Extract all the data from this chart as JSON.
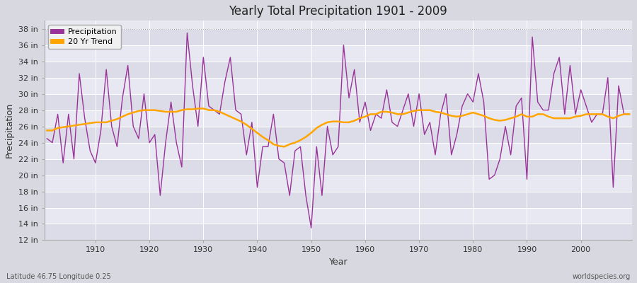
{
  "title": "Yearly Total Precipitation 1901 - 2009",
  "xlabel": "Year",
  "ylabel": "Precipitation",
  "lat_lon_label": "Latitude 46.75 Longitude 0.25",
  "source_label": "worldspecies.org",
  "precipitation_color": "#993399",
  "trend_color": "#FFA500",
  "background_color": "#D8D8E0",
  "plot_background": "#E8E8F0",
  "grid_color": "#FFFFFF",
  "ylim": [
    12,
    39
  ],
  "ytick_labels": [
    "12 in",
    "14 in",
    "16 in",
    "18 in",
    "20 in",
    "22 in",
    "24 in",
    "26 in",
    "28 in",
    "30 in",
    "32 in",
    "34 in",
    "36 in",
    "38 in"
  ],
  "ytick_values": [
    12,
    14,
    16,
    18,
    20,
    22,
    24,
    26,
    28,
    30,
    32,
    34,
    36,
    38
  ],
  "years": [
    1901,
    1902,
    1903,
    1904,
    1905,
    1906,
    1907,
    1908,
    1909,
    1910,
    1911,
    1912,
    1913,
    1914,
    1915,
    1916,
    1917,
    1918,
    1919,
    1920,
    1921,
    1922,
    1923,
    1924,
    1925,
    1926,
    1927,
    1928,
    1929,
    1930,
    1931,
    1932,
    1933,
    1934,
    1935,
    1936,
    1937,
    1938,
    1939,
    1940,
    1941,
    1942,
    1943,
    1944,
    1945,
    1946,
    1947,
    1948,
    1949,
    1950,
    1951,
    1952,
    1953,
    1954,
    1955,
    1956,
    1957,
    1958,
    1959,
    1960,
    1961,
    1962,
    1963,
    1964,
    1965,
    1966,
    1967,
    1968,
    1969,
    1970,
    1971,
    1972,
    1973,
    1974,
    1975,
    1976,
    1977,
    1978,
    1979,
    1980,
    1981,
    1982,
    1983,
    1984,
    1985,
    1986,
    1987,
    1988,
    1989,
    1990,
    1991,
    1992,
    1993,
    1994,
    1995,
    1996,
    1997,
    1998,
    1999,
    2000,
    2001,
    2002,
    2003,
    2004,
    2005,
    2006,
    2007,
    2008,
    2009
  ],
  "precipitation": [
    24.5,
    24.0,
    27.5,
    21.5,
    27.5,
    22.0,
    32.5,
    27.0,
    23.0,
    21.5,
    25.5,
    33.0,
    26.0,
    23.5,
    29.5,
    33.5,
    26.0,
    24.5,
    30.0,
    24.0,
    25.0,
    17.5,
    24.0,
    29.0,
    24.0,
    21.0,
    37.5,
    31.0,
    26.0,
    34.5,
    28.5,
    28.0,
    27.5,
    31.5,
    34.5,
    28.0,
    27.5,
    22.5,
    26.5,
    18.5,
    23.5,
    23.5,
    27.5,
    22.0,
    21.5,
    17.5,
    23.0,
    23.5,
    17.5,
    13.5,
    23.5,
    17.5,
    26.0,
    22.5,
    23.5,
    36.0,
    29.5,
    33.0,
    26.5,
    29.0,
    25.5,
    27.5,
    27.0,
    30.5,
    26.5,
    26.0,
    28.0,
    30.0,
    26.0,
    30.0,
    25.0,
    26.5,
    22.5,
    27.5,
    30.0,
    22.5,
    25.0,
    28.5,
    30.0,
    29.0,
    32.5,
    29.0,
    19.5,
    20.0,
    22.0,
    26.0,
    22.5,
    28.5,
    29.5,
    19.5,
    37.0,
    29.0,
    28.0,
    28.0,
    32.5,
    34.5,
    27.5,
    33.5,
    27.5,
    30.5,
    28.5,
    26.5,
    27.5,
    27.5,
    32.0,
    18.5,
    31.0,
    27.5,
    27.5
  ],
  "trend": [
    25.5,
    25.5,
    25.8,
    25.9,
    26.0,
    26.1,
    26.2,
    26.3,
    26.4,
    26.5,
    26.5,
    26.5,
    26.7,
    26.9,
    27.2,
    27.5,
    27.7,
    27.9,
    28.0,
    28.0,
    28.0,
    27.9,
    27.8,
    27.8,
    27.8,
    28.0,
    28.1,
    28.1,
    28.2,
    28.2,
    28.0,
    28.0,
    27.8,
    27.5,
    27.2,
    26.9,
    26.6,
    26.2,
    25.7,
    25.2,
    24.7,
    24.3,
    23.8,
    23.6,
    23.5,
    23.8,
    24.0,
    24.3,
    24.7,
    25.2,
    25.8,
    26.2,
    26.5,
    26.6,
    26.6,
    26.5,
    26.5,
    26.7,
    27.0,
    27.2,
    27.5,
    27.5,
    27.8,
    27.8,
    27.7,
    27.5,
    27.5,
    27.7,
    27.9,
    28.0,
    28.0,
    28.0,
    27.8,
    27.7,
    27.5,
    27.3,
    27.2,
    27.3,
    27.5,
    27.7,
    27.5,
    27.3,
    27.0,
    26.8,
    26.7,
    26.8,
    27.0,
    27.2,
    27.5,
    27.2,
    27.2,
    27.5,
    27.5,
    27.2,
    27.0,
    27.0,
    27.0,
    27.0,
    27.2,
    27.3,
    27.5,
    27.5,
    27.5,
    27.5,
    27.2,
    27.0,
    27.3,
    27.5,
    27.5
  ]
}
